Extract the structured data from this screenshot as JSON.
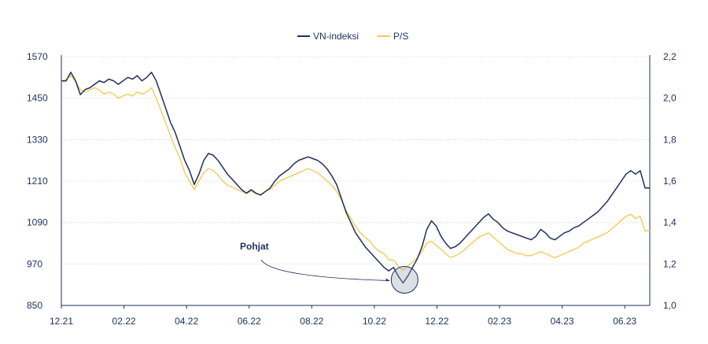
{
  "chart_data": {
    "type": "line",
    "x_labels": [
      "12.21",
      "02.22",
      "04.22",
      "06.22",
      "08.22",
      "10.22",
      "12.22",
      "02.23",
      "04.23",
      "06.23"
    ],
    "y_left": {
      "min": 850,
      "max": 1570,
      "ticks": [
        "1570",
        "1450",
        "1330",
        "1210",
        "1090",
        "970",
        "850"
      ]
    },
    "y_right": {
      "min": 1.0,
      "max": 2.2,
      "ticks": [
        "2,2",
        "2,0",
        "1,8",
        "1,6",
        "1,4",
        "1,2",
        "1,0"
      ]
    },
    "grid": true,
    "legend": {
      "placement": "top-center"
    },
    "annotation": {
      "text": "Pohjat"
    },
    "series": [
      {
        "name": "VN-indeksi",
        "axis": "left",
        "color": "#1f2f5e",
        "points": [
          [
            0,
            1500
          ],
          [
            0.1,
            1500
          ],
          [
            0.2,
            1525
          ],
          [
            0.3,
            1500
          ],
          [
            0.4,
            1460
          ],
          [
            0.5,
            1475
          ],
          [
            0.6,
            1480
          ],
          [
            0.7,
            1490
          ],
          [
            0.8,
            1500
          ],
          [
            0.9,
            1495
          ],
          [
            1.0,
            1505
          ],
          [
            1.1,
            1500
          ],
          [
            1.2,
            1490
          ],
          [
            1.3,
            1500
          ],
          [
            1.4,
            1510
          ],
          [
            1.5,
            1505
          ],
          [
            1.6,
            1515
          ],
          [
            1.7,
            1500
          ],
          [
            1.8,
            1510
          ],
          [
            1.9,
            1525
          ],
          [
            2.0,
            1500
          ],
          [
            2.1,
            1460
          ],
          [
            2.2,
            1420
          ],
          [
            2.3,
            1380
          ],
          [
            2.4,
            1350
          ],
          [
            2.5,
            1310
          ],
          [
            2.6,
            1270
          ],
          [
            2.7,
            1240
          ],
          [
            2.8,
            1200
          ],
          [
            2.9,
            1230
          ],
          [
            3.0,
            1270
          ],
          [
            3.1,
            1290
          ],
          [
            3.2,
            1285
          ],
          [
            3.3,
            1270
          ],
          [
            3.4,
            1250
          ],
          [
            3.5,
            1230
          ],
          [
            3.6,
            1215
          ],
          [
            3.7,
            1200
          ],
          [
            3.8,
            1185
          ],
          [
            3.9,
            1175
          ],
          [
            4.0,
            1185
          ],
          [
            4.1,
            1175
          ],
          [
            4.2,
            1170
          ],
          [
            4.3,
            1180
          ],
          [
            4.4,
            1190
          ],
          [
            4.5,
            1210
          ],
          [
            4.6,
            1225
          ],
          [
            4.7,
            1235
          ],
          [
            4.8,
            1245
          ],
          [
            4.9,
            1260
          ],
          [
            5.0,
            1270
          ],
          [
            5.1,
            1275
          ],
          [
            5.2,
            1280
          ],
          [
            5.3,
            1275
          ],
          [
            5.4,
            1270
          ],
          [
            5.5,
            1260
          ],
          [
            5.6,
            1245
          ],
          [
            5.7,
            1225
          ],
          [
            5.8,
            1200
          ],
          [
            5.9,
            1160
          ],
          [
            6.0,
            1120
          ],
          [
            6.1,
            1090
          ],
          [
            6.2,
            1060
          ],
          [
            6.3,
            1040
          ],
          [
            6.4,
            1020
          ],
          [
            6.5,
            1005
          ],
          [
            6.6,
            990
          ],
          [
            6.7,
            975
          ],
          [
            6.8,
            960
          ],
          [
            6.9,
            950
          ],
          [
            7.0,
            960
          ],
          [
            7.1,
            935
          ],
          [
            7.2,
            915
          ],
          [
            7.3,
            935
          ],
          [
            7.4,
            960
          ],
          [
            7.5,
            985
          ],
          [
            7.6,
            1020
          ],
          [
            7.7,
            1070
          ],
          [
            7.8,
            1095
          ],
          [
            7.9,
            1080
          ],
          [
            8.0,
            1050
          ],
          [
            8.1,
            1030
          ],
          [
            8.2,
            1015
          ],
          [
            8.3,
            1020
          ],
          [
            8.4,
            1030
          ],
          [
            8.5,
            1045
          ],
          [
            8.6,
            1060
          ],
          [
            8.7,
            1075
          ],
          [
            8.8,
            1090
          ],
          [
            8.9,
            1105
          ],
          [
            9.0,
            1115
          ],
          [
            9.1,
            1100
          ],
          [
            9.2,
            1090
          ],
          [
            9.3,
            1075
          ],
          [
            9.4,
            1065
          ],
          [
            9.5,
            1060
          ],
          [
            9.6,
            1055
          ],
          [
            9.7,
            1050
          ],
          [
            9.8,
            1045
          ],
          [
            9.9,
            1040
          ],
          [
            10.0,
            1050
          ],
          [
            10.1,
            1070
          ],
          [
            10.2,
            1060
          ],
          [
            10.3,
            1045
          ],
          [
            10.4,
            1040
          ],
          [
            10.5,
            1050
          ],
          [
            10.6,
            1060
          ],
          [
            10.7,
            1065
          ],
          [
            10.8,
            1075
          ],
          [
            10.9,
            1080
          ],
          [
            11.0,
            1090
          ],
          [
            11.1,
            1100
          ],
          [
            11.2,
            1110
          ],
          [
            11.3,
            1120
          ],
          [
            11.4,
            1135
          ],
          [
            11.5,
            1150
          ],
          [
            11.6,
            1170
          ],
          [
            11.7,
            1190
          ],
          [
            11.8,
            1210
          ],
          [
            11.9,
            1230
          ],
          [
            12.0,
            1240
          ],
          [
            12.1,
            1230
          ],
          [
            12.2,
            1240
          ],
          [
            12.3,
            1190
          ],
          [
            12.4,
            1190
          ]
        ]
      },
      {
        "name": "P/S",
        "axis": "right",
        "color": "#f2c94c",
        "points": [
          [
            0,
            2.08
          ],
          [
            0.1,
            2.09
          ],
          [
            0.2,
            2.11
          ],
          [
            0.3,
            2.08
          ],
          [
            0.4,
            2.04
          ],
          [
            0.5,
            2.03
          ],
          [
            0.6,
            2.04
          ],
          [
            0.7,
            2.05
          ],
          [
            0.8,
            2.04
          ],
          [
            0.9,
            2.02
          ],
          [
            1.0,
            2.03
          ],
          [
            1.1,
            2.02
          ],
          [
            1.2,
            2.0
          ],
          [
            1.3,
            2.01
          ],
          [
            1.4,
            2.02
          ],
          [
            1.5,
            2.01
          ],
          [
            1.6,
            2.03
          ],
          [
            1.7,
            2.02
          ],
          [
            1.8,
            2.03
          ],
          [
            1.9,
            2.05
          ],
          [
            2.0,
            2.0
          ],
          [
            2.1,
            1.94
          ],
          [
            2.2,
            1.88
          ],
          [
            2.3,
            1.82
          ],
          [
            2.4,
            1.76
          ],
          [
            2.5,
            1.71
          ],
          [
            2.6,
            1.64
          ],
          [
            2.7,
            1.6
          ],
          [
            2.8,
            1.56
          ],
          [
            2.9,
            1.6
          ],
          [
            3.0,
            1.64
          ],
          [
            3.1,
            1.66
          ],
          [
            3.2,
            1.65
          ],
          [
            3.3,
            1.63
          ],
          [
            3.4,
            1.6
          ],
          [
            3.5,
            1.58
          ],
          [
            3.6,
            1.57
          ],
          [
            3.7,
            1.56
          ],
          [
            3.8,
            1.55
          ],
          [
            3.9,
            1.54
          ],
          [
            4.0,
            1.55
          ],
          [
            4.1,
            1.54
          ],
          [
            4.2,
            1.53
          ],
          [
            4.3,
            1.55
          ],
          [
            4.4,
            1.56
          ],
          [
            4.5,
            1.58
          ],
          [
            4.6,
            1.6
          ],
          [
            4.7,
            1.61
          ],
          [
            4.8,
            1.62
          ],
          [
            4.9,
            1.63
          ],
          [
            5.0,
            1.64
          ],
          [
            5.1,
            1.65
          ],
          [
            5.2,
            1.66
          ],
          [
            5.3,
            1.65
          ],
          [
            5.4,
            1.64
          ],
          [
            5.5,
            1.62
          ],
          [
            5.6,
            1.6
          ],
          [
            5.7,
            1.58
          ],
          [
            5.8,
            1.55
          ],
          [
            5.9,
            1.51
          ],
          [
            6.0,
            1.46
          ],
          [
            6.1,
            1.42
          ],
          [
            6.2,
            1.38
          ],
          [
            6.3,
            1.35
          ],
          [
            6.4,
            1.33
          ],
          [
            6.5,
            1.31
          ],
          [
            6.6,
            1.28
          ],
          [
            6.7,
            1.26
          ],
          [
            6.8,
            1.25
          ],
          [
            6.9,
            1.22
          ],
          [
            7.0,
            1.22
          ],
          [
            7.1,
            1.19
          ],
          [
            7.2,
            1.17
          ],
          [
            7.3,
            1.19
          ],
          [
            7.4,
            1.21
          ],
          [
            7.5,
            1.23
          ],
          [
            7.6,
            1.26
          ],
          [
            7.7,
            1.3
          ],
          [
            7.8,
            1.31
          ],
          [
            7.9,
            1.29
          ],
          [
            8.0,
            1.27
          ],
          [
            8.1,
            1.25
          ],
          [
            8.2,
            1.23
          ],
          [
            8.3,
            1.24
          ],
          [
            8.4,
            1.25
          ],
          [
            8.5,
            1.27
          ],
          [
            8.6,
            1.29
          ],
          [
            8.7,
            1.31
          ],
          [
            8.8,
            1.33
          ],
          [
            8.9,
            1.34
          ],
          [
            9.0,
            1.35
          ],
          [
            9.1,
            1.33
          ],
          [
            9.2,
            1.31
          ],
          [
            9.3,
            1.29
          ],
          [
            9.4,
            1.27
          ],
          [
            9.5,
            1.26
          ],
          [
            9.6,
            1.25
          ],
          [
            9.7,
            1.25
          ],
          [
            9.8,
            1.24
          ],
          [
            9.9,
            1.24
          ],
          [
            10.0,
            1.25
          ],
          [
            10.1,
            1.26
          ],
          [
            10.2,
            1.25
          ],
          [
            10.3,
            1.24
          ],
          [
            10.4,
            1.23
          ],
          [
            10.5,
            1.24
          ],
          [
            10.6,
            1.25
          ],
          [
            10.7,
            1.26
          ],
          [
            10.8,
            1.27
          ],
          [
            10.9,
            1.28
          ],
          [
            11.0,
            1.3
          ],
          [
            11.1,
            1.31
          ],
          [
            11.2,
            1.32
          ],
          [
            11.3,
            1.33
          ],
          [
            11.4,
            1.34
          ],
          [
            11.5,
            1.35
          ],
          [
            11.6,
            1.37
          ],
          [
            11.7,
            1.39
          ],
          [
            11.8,
            1.41
          ],
          [
            11.9,
            1.43
          ],
          [
            12.0,
            1.44
          ],
          [
            12.1,
            1.42
          ],
          [
            12.2,
            1.43
          ],
          [
            12.3,
            1.36
          ],
          [
            12.4,
            1.36
          ]
        ]
      }
    ]
  }
}
